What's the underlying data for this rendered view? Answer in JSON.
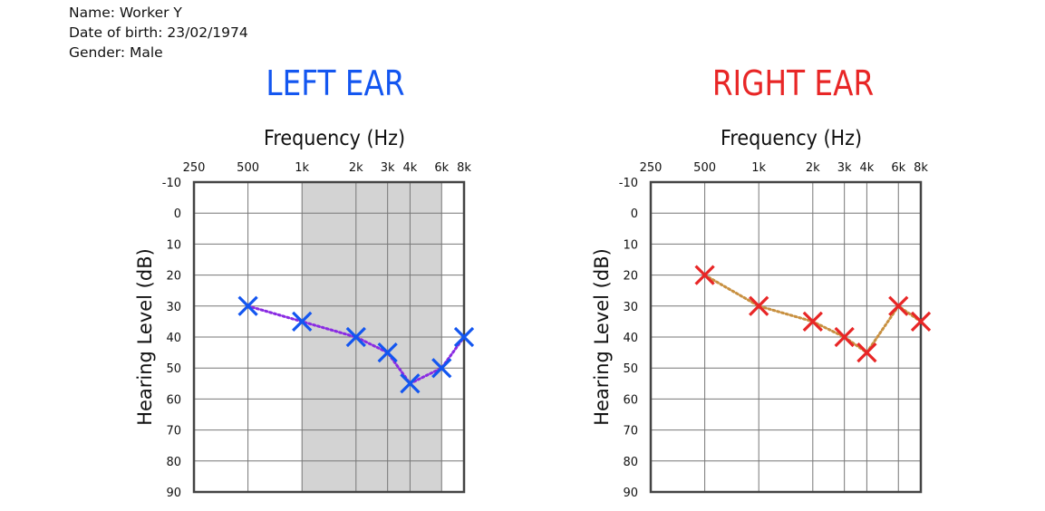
{
  "info": {
    "name": "Name: Worker Y",
    "dob": "Date of birth: 23/02/1974",
    "gender": "Gender: Male"
  },
  "chart_data": [
    {
      "type": "line",
      "title": "LEFT EAR",
      "title_color": "#1356f0",
      "xlabel": "Frequency (Hz)",
      "ylabel": "Hearing Level (dB)",
      "x_ticks": [
        "250",
        "500",
        "1k",
        "2k",
        "3k",
        "4k",
        "6k",
        "8k"
      ],
      "x_values_hz": [
        250,
        500,
        1000,
        2000,
        3000,
        4000,
        6000,
        8000
      ],
      "y_ticks": [
        -10,
        0,
        10,
        20,
        30,
        40,
        50,
        60,
        70,
        80,
        90
      ],
      "ylim": [
        -10,
        90
      ],
      "y_inverted": true,
      "x_scale": "log",
      "grid": true,
      "shaded_range_hz": [
        1000,
        6000
      ],
      "shade_color": "#d3d3d3",
      "marker": "x",
      "marker_color": "#1356f0",
      "line_color": "#8a2be2",
      "line_style": "dotted",
      "series": [
        {
          "x": [
            500,
            1000,
            2000,
            3000,
            4000,
            6000,
            8000
          ],
          "values": [
            30,
            35,
            40,
            45,
            55,
            50,
            40
          ]
        }
      ]
    },
    {
      "type": "line",
      "title": "RIGHT EAR",
      "title_color": "#e82626",
      "xlabel": "Frequency (Hz)",
      "ylabel": "Hearing Level (dB)",
      "x_ticks": [
        "250",
        "500",
        "1k",
        "2k",
        "3k",
        "4k",
        "6k",
        "8k"
      ],
      "x_values_hz": [
        250,
        500,
        1000,
        2000,
        3000,
        4000,
        6000,
        8000
      ],
      "y_ticks": [
        -10,
        0,
        10,
        20,
        30,
        40,
        50,
        60,
        70,
        80,
        90
      ],
      "ylim": [
        -10,
        90
      ],
      "y_inverted": true,
      "x_scale": "log",
      "grid": true,
      "shaded_range_hz": null,
      "marker": "x",
      "marker_color": "#e82626",
      "line_color": "#c89040",
      "line_style": "dotted",
      "series": [
        {
          "x": [
            500,
            1000,
            2000,
            3000,
            4000,
            6000,
            8000
          ],
          "values": [
            20,
            30,
            35,
            40,
            45,
            30,
            35
          ]
        }
      ]
    }
  ]
}
